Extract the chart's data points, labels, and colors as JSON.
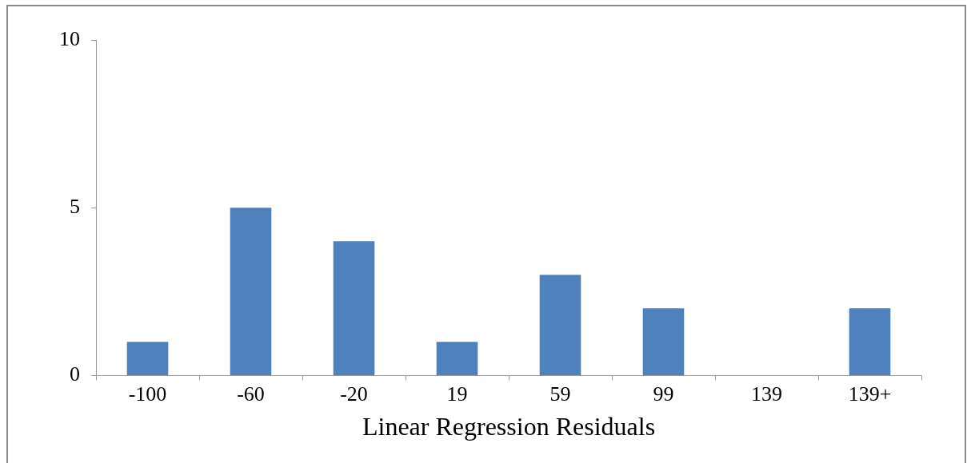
{
  "chart_data": {
    "type": "bar",
    "xlabel": "Linear Regression Residuals",
    "categories": [
      "-100",
      "-60",
      "-20",
      "19",
      "59",
      "99",
      "139",
      "139+"
    ],
    "values": [
      1,
      5,
      4,
      1,
      3,
      2,
      0,
      2
    ],
    "color": "#4f81bd",
    "ylim": [
      0,
      10
    ],
    "yticks": [
      0,
      5,
      10
    ],
    "grid": false,
    "legend": false
  }
}
